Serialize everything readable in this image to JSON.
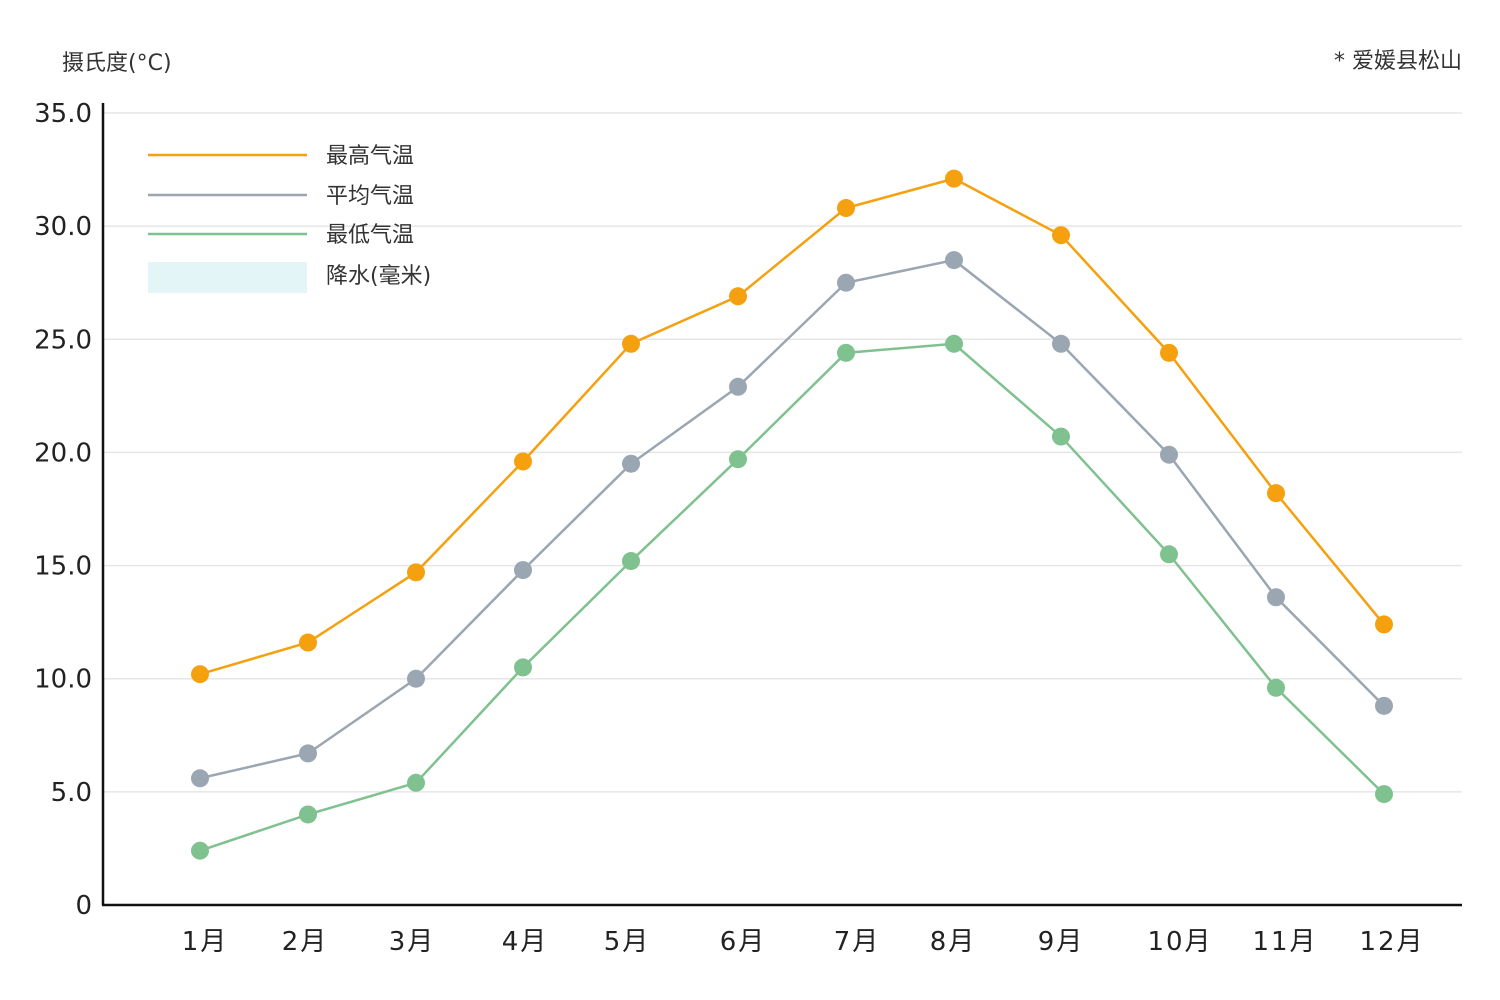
{
  "chart_data": {
    "type": "line",
    "ylabel": "摄氏度(°C)",
    "note": "* 爱媛县松山",
    "ylim": [
      0,
      35
    ],
    "yticks": [
      "0",
      "5.0",
      "10.0",
      "15.0",
      "20.0",
      "25.0",
      "30.0",
      "35.0"
    ],
    "categories": [
      "1月",
      "2月",
      "3月",
      "4月",
      "5月",
      "6月",
      "7月",
      "8月",
      "9月",
      "10月",
      "11月",
      "12月"
    ],
    "grid": true,
    "legend_position": "top-left",
    "series": [
      {
        "name": "最高气温",
        "color": "#F5A00F",
        "values": [
          10.2,
          11.6,
          14.7,
          19.6,
          24.8,
          26.9,
          30.8,
          32.1,
          29.6,
          24.4,
          18.2,
          12.4
        ]
      },
      {
        "name": "平均气温",
        "color": "#9AA6B2",
        "values": [
          5.6,
          6.7,
          10.0,
          14.8,
          19.5,
          22.9,
          27.5,
          28.5,
          24.8,
          19.9,
          13.6,
          8.8
        ]
      },
      {
        "name": "最低气温",
        "color": "#7FC18F",
        "values": [
          2.4,
          4.0,
          5.4,
          10.5,
          15.2,
          19.7,
          24.4,
          24.8,
          20.7,
          15.5,
          9.6,
          4.9
        ]
      }
    ],
    "legend_extra": {
      "name": "降水(毫米)",
      "color": "#E3F5F7"
    }
  }
}
